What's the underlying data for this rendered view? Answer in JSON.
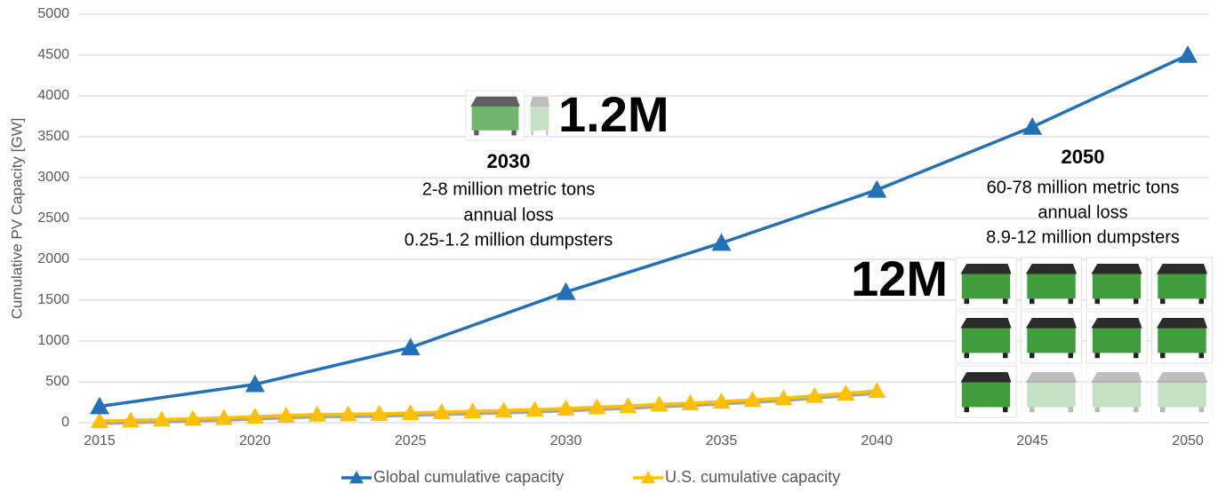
{
  "chart_data": {
    "type": "line",
    "y_label": "Cumulative PV Capacity [GW]",
    "xlim": [
      2015,
      2050
    ],
    "xticks": [
      2015,
      2020,
      2025,
      2030,
      2035,
      2040,
      2045,
      2050
    ],
    "ylim": [
      0,
      5000
    ],
    "yticks": [
      0,
      500,
      1000,
      1500,
      2000,
      2500,
      3000,
      3500,
      4000,
      4500,
      5000
    ],
    "grid": true,
    "series": [
      {
        "name": "Global cumulative capacity",
        "color": "#2271b8",
        "x": [
          2015,
          2020,
          2025,
          2030,
          2035,
          2040,
          2045,
          2050
        ],
        "values": [
          200,
          470,
          920,
          1600,
          2200,
          2850,
          3620,
          4500
        ]
      },
      {
        "name": "U.S. cumulative capacity",
        "color": "#ffc000",
        "x": [
          2015,
          2016,
          2017,
          2018,
          2019,
          2020,
          2021,
          2022,
          2023,
          2024,
          2025,
          2026,
          2027,
          2028,
          2029,
          2030,
          2031,
          2032,
          2033,
          2034,
          2035,
          2036,
          2037,
          2038,
          2039,
          2040
        ],
        "values": [
          20,
          30,
          40,
          50,
          60,
          75,
          90,
          100,
          105,
          110,
          120,
          130,
          140,
          150,
          160,
          175,
          190,
          205,
          225,
          240,
          260,
          280,
          300,
          330,
          360,
          390
        ]
      }
    ],
    "annotations": [
      "1.2M",
      "2030",
      "2-8 million metric tons",
      "annual loss",
      "0.25-1.2 million dumpsters",
      "2050",
      "60-78 million metric tons",
      "annual loss",
      "8.9-12 million dumpsters",
      "12M"
    ]
  }
}
